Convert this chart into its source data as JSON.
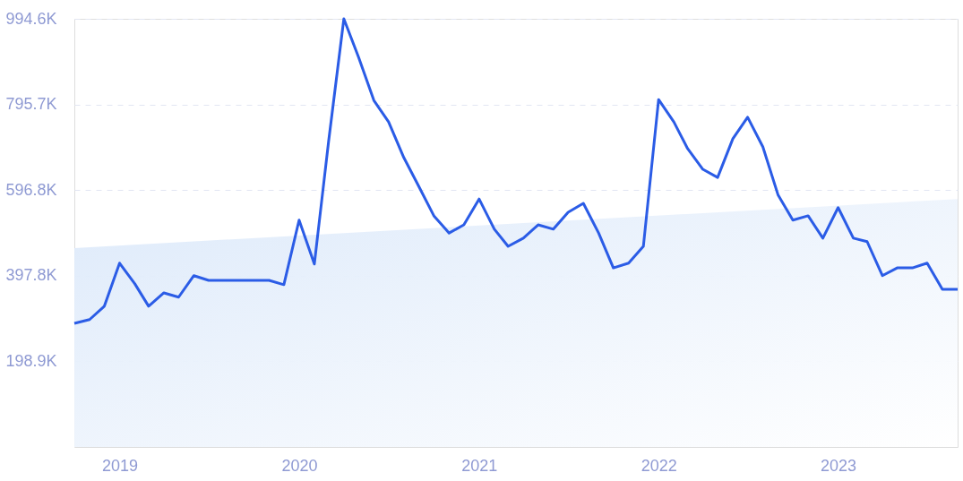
{
  "chart_data": {
    "type": "line",
    "x": [
      "2018-10",
      "2018-11",
      "2018-12",
      "2019-01",
      "2019-02",
      "2019-03",
      "2019-04",
      "2019-05",
      "2019-06",
      "2019-07",
      "2019-08",
      "2019-09",
      "2019-10",
      "2019-11",
      "2019-12",
      "2020-01",
      "2020-02",
      "2020-03",
      "2020-04",
      "2020-05",
      "2020-06",
      "2020-07",
      "2020-08",
      "2020-09",
      "2020-10",
      "2020-11",
      "2020-12",
      "2021-01",
      "2021-02",
      "2021-03",
      "2021-04",
      "2021-05",
      "2021-06",
      "2021-07",
      "2021-08",
      "2021-09",
      "2021-10",
      "2021-11",
      "2021-12",
      "2022-01",
      "2022-02",
      "2022-03",
      "2022-04",
      "2022-05",
      "2022-06",
      "2022-07",
      "2022-08",
      "2022-09",
      "2022-10",
      "2022-11",
      "2022-12",
      "2023-01",
      "2023-02",
      "2023-03",
      "2023-04",
      "2023-05",
      "2023-06",
      "2023-07",
      "2023-08",
      "2023-09"
    ],
    "series": [
      {
        "type": "area",
        "color": "#dce9fa",
        "x": [
          "2018-10",
          "2023-09"
        ],
        "values": [
          462000,
          576000
        ]
      },
      {
        "color": "#2b5ce6",
        "values": [
          287000,
          296000,
          327000,
          427000,
          379000,
          327000,
          358000,
          348000,
          398000,
          387000,
          387000,
          387000,
          387000,
          387000,
          377000,
          527000,
          425000,
          710000,
          994600,
          905000,
          805000,
          755000,
          672000,
          604000,
          537000,
          497000,
          516000,
          576000,
          506000,
          466000,
          485000,
          516000,
          506000,
          545000,
          566000,
          497000,
          416000,
          427000,
          466000,
          807000,
          755000,
          693000,
          645000,
          626000,
          716000,
          766000,
          697000,
          585000,
          527000,
          537000,
          485000,
          556000,
          485000,
          477000,
          398000,
          416000,
          416000,
          427000,
          366000,
          366000
        ]
      }
    ],
    "xlim": [
      "2018-10",
      "2023-09"
    ],
    "xticks": [
      "2019",
      "2020",
      "2021",
      "2022",
      "2023"
    ],
    "ylim": [
      0,
      994600
    ],
    "yticks": [
      {
        "value": 198900,
        "label": "198.9K"
      },
      {
        "value": 397800,
        "label": "397.8K"
      },
      {
        "value": 596800,
        "label": "596.8K"
      },
      {
        "value": 795700,
        "label": "795.7K"
      },
      {
        "value": 994600,
        "label": "994.6K"
      }
    ],
    "grid": "y",
    "line_style": "solid",
    "marker": "none"
  }
}
